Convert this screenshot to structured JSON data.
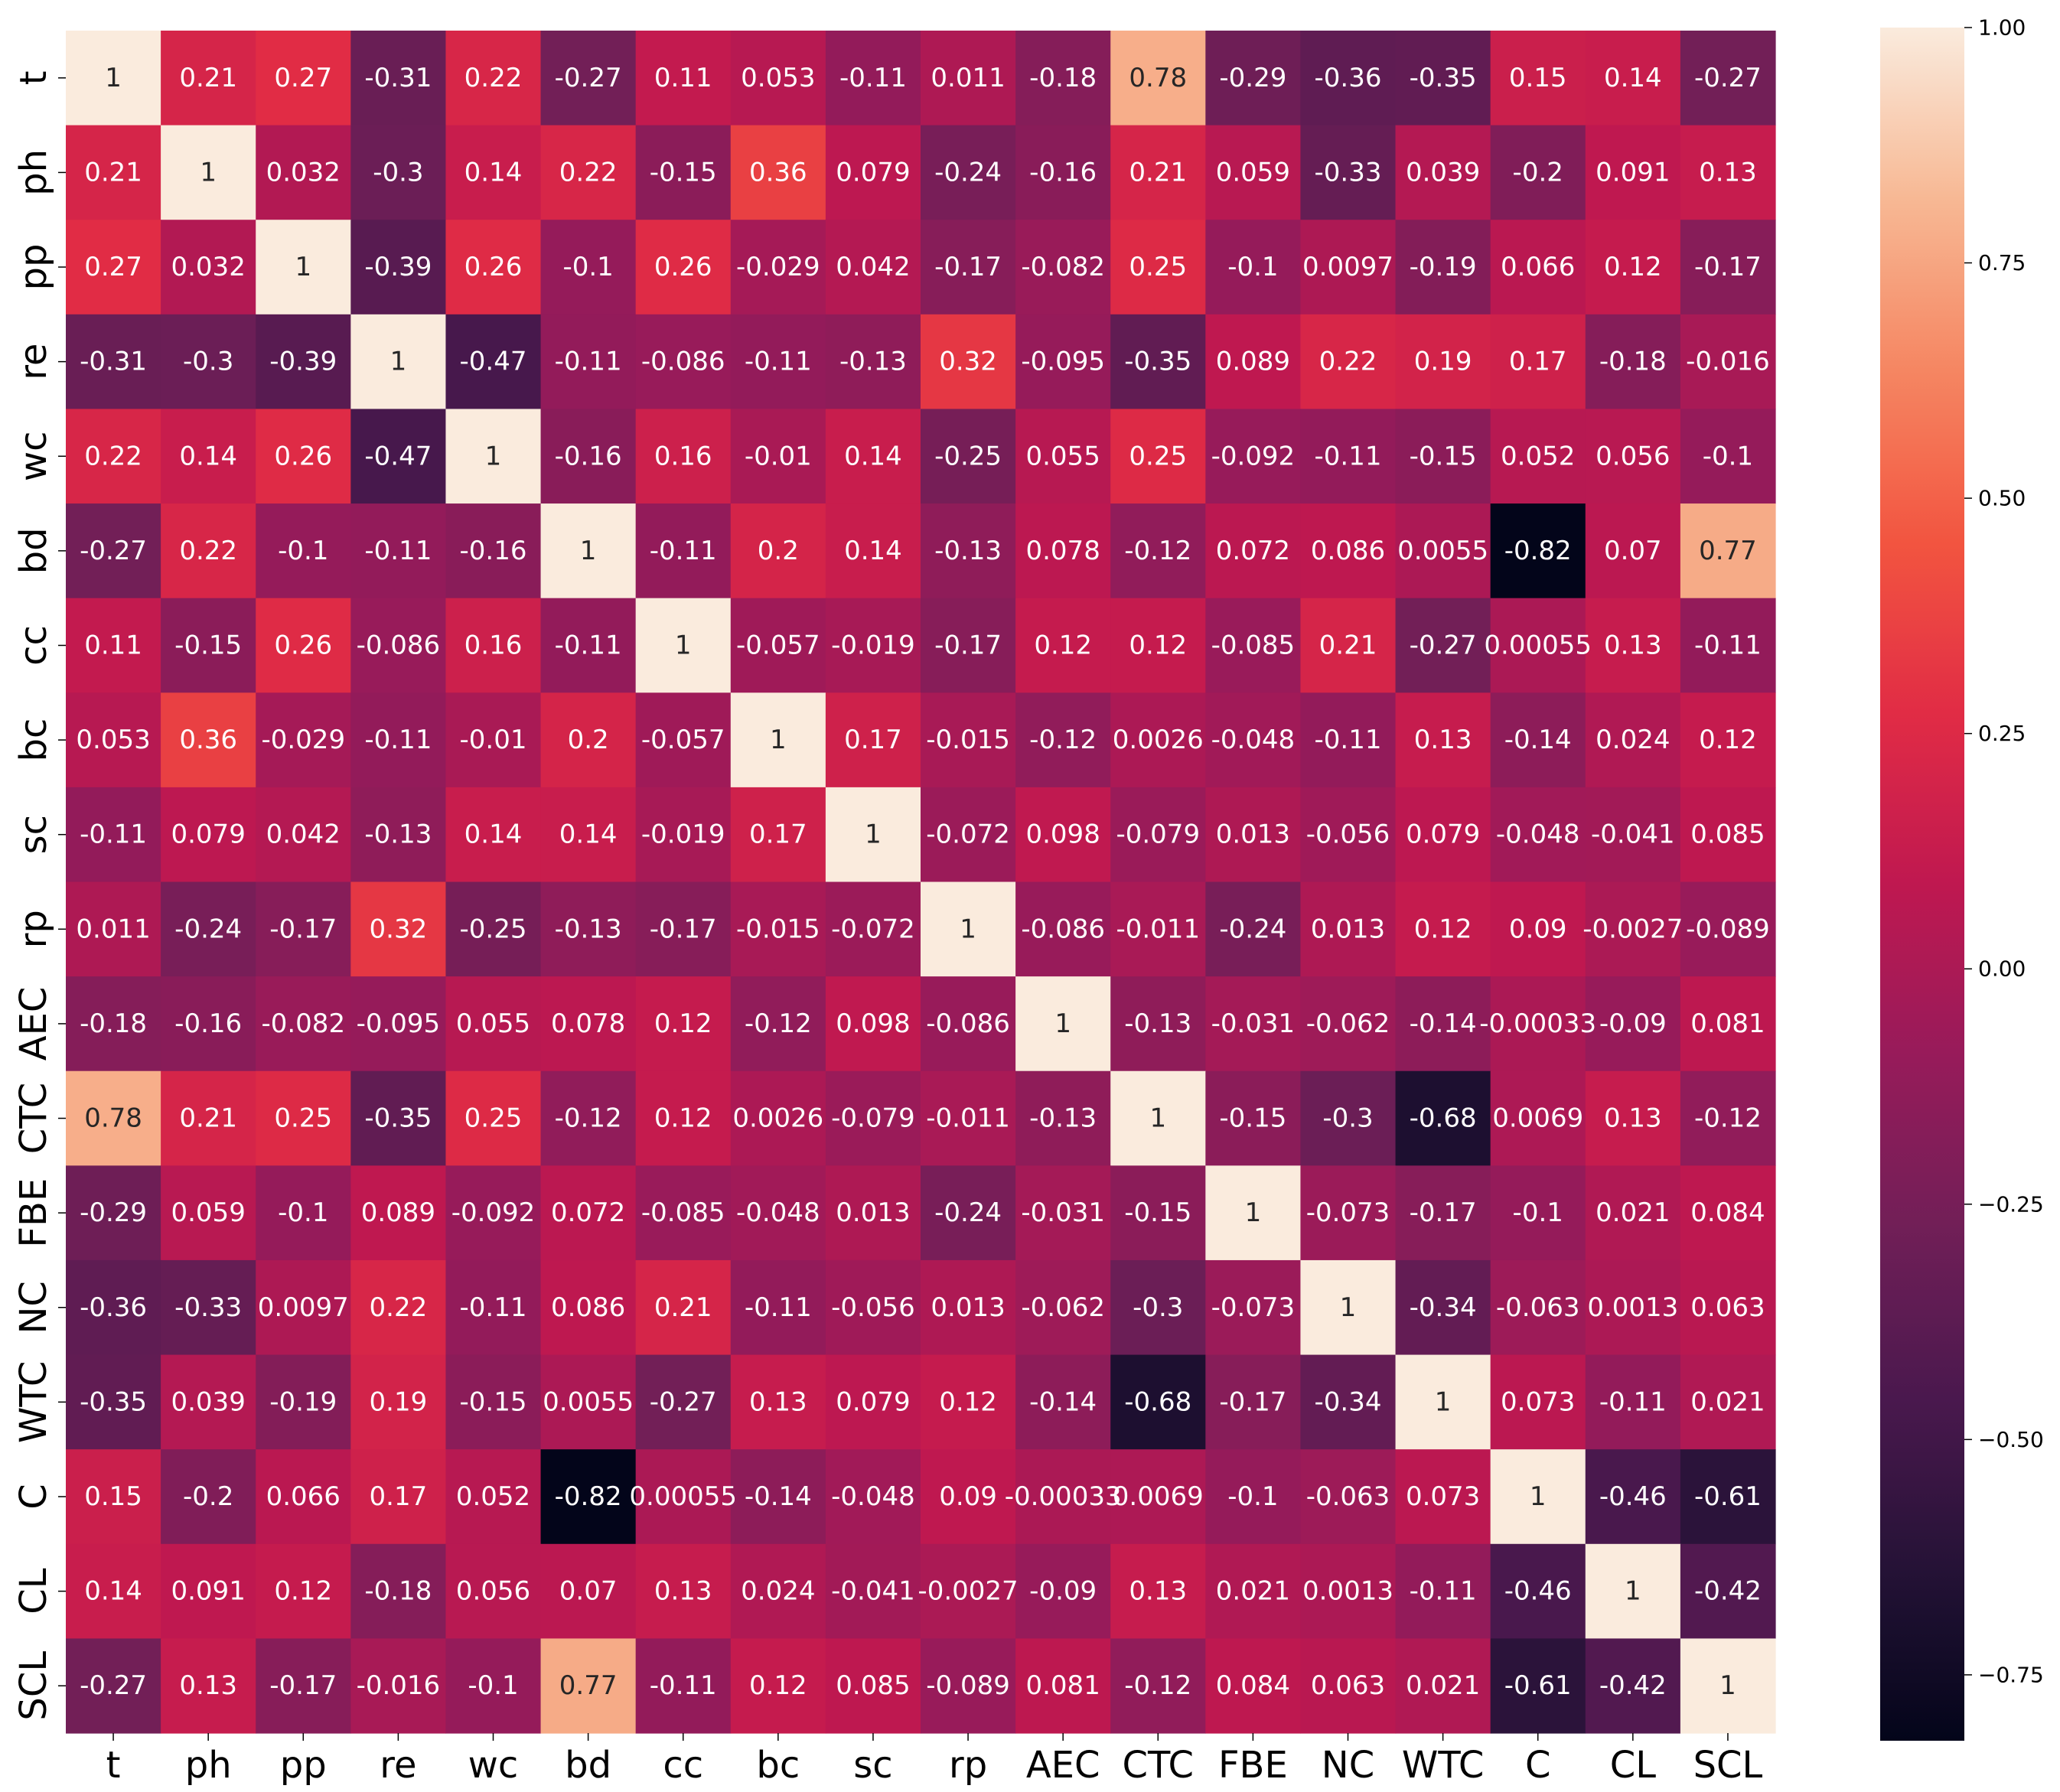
{
  "chart_data": {
    "type": "heatmap",
    "title": "",
    "xlabel": "",
    "ylabel": "",
    "colormap": "rocket",
    "x_labels": [
      "t",
      "ph",
      "pp",
      "re",
      "wc",
      "bd",
      "cc",
      "bc",
      "sc",
      "rp",
      "AEC",
      "CTC",
      "FBE",
      "NC",
      "WTC",
      "C",
      "CL",
      "SCL"
    ],
    "y_labels": [
      "t",
      "ph",
      "pp",
      "re",
      "wc",
      "bd",
      "cc",
      "bc",
      "sc",
      "rp",
      "AEC",
      "CTC",
      "FBE",
      "NC",
      "WTC",
      "C",
      "CL",
      "SCL"
    ],
    "values": [
      [
        1,
        0.21,
        0.27,
        -0.31,
        0.22,
        -0.27,
        0.11,
        0.053,
        -0.11,
        0.011,
        -0.18,
        0.78,
        -0.29,
        -0.36,
        -0.35,
        0.15,
        0.14,
        -0.27
      ],
      [
        0.21,
        1,
        0.032,
        -0.3,
        0.14,
        0.22,
        -0.15,
        0.36,
        0.079,
        -0.24,
        -0.16,
        0.21,
        0.059,
        -0.33,
        0.039,
        -0.2,
        0.091,
        0.13
      ],
      [
        0.27,
        0.032,
        1,
        -0.39,
        0.26,
        -0.1,
        0.26,
        -0.029,
        0.042,
        -0.17,
        -0.082,
        0.25,
        -0.1,
        0.0097,
        -0.19,
        0.066,
        0.12,
        -0.17
      ],
      [
        -0.31,
        -0.3,
        -0.39,
        1,
        -0.47,
        -0.11,
        -0.086,
        -0.11,
        -0.13,
        0.32,
        -0.095,
        -0.35,
        0.089,
        0.22,
        0.19,
        0.17,
        -0.18,
        -0.016
      ],
      [
        0.22,
        0.14,
        0.26,
        -0.47,
        1,
        -0.16,
        0.16,
        -0.01,
        0.14,
        -0.25,
        0.055,
        0.25,
        -0.092,
        -0.11,
        -0.15,
        0.052,
        0.056,
        -0.1
      ],
      [
        -0.27,
        0.22,
        -0.1,
        -0.11,
        -0.16,
        1,
        -0.11,
        0.2,
        0.14,
        -0.13,
        0.078,
        -0.12,
        0.072,
        0.086,
        0.0055,
        -0.82,
        0.07,
        0.77
      ],
      [
        0.11,
        -0.15,
        0.26,
        -0.086,
        0.16,
        -0.11,
        1,
        -0.057,
        -0.019,
        -0.17,
        0.12,
        0.12,
        -0.085,
        0.21,
        -0.27,
        0.00055,
        0.13,
        -0.11
      ],
      [
        0.053,
        0.36,
        -0.029,
        -0.11,
        -0.01,
        0.2,
        -0.057,
        1,
        0.17,
        -0.015,
        -0.12,
        0.0026,
        -0.048,
        -0.11,
        0.13,
        -0.14,
        0.024,
        0.12
      ],
      [
        -0.11,
        0.079,
        0.042,
        -0.13,
        0.14,
        0.14,
        -0.019,
        0.17,
        1,
        -0.072,
        0.098,
        -0.079,
        0.013,
        -0.056,
        0.079,
        -0.048,
        -0.041,
        0.085
      ],
      [
        0.011,
        -0.24,
        -0.17,
        0.32,
        -0.25,
        -0.13,
        -0.17,
        -0.015,
        -0.072,
        1,
        -0.086,
        -0.011,
        -0.24,
        0.013,
        0.12,
        0.09,
        -0.0027,
        -0.089
      ],
      [
        -0.18,
        -0.16,
        -0.082,
        -0.095,
        0.055,
        0.078,
        0.12,
        -0.12,
        0.098,
        -0.086,
        1,
        -0.13,
        -0.031,
        -0.062,
        -0.14,
        -0.00033,
        -0.09,
        0.081
      ],
      [
        0.78,
        0.21,
        0.25,
        -0.35,
        0.25,
        -0.12,
        0.12,
        0.0026,
        -0.079,
        -0.011,
        -0.13,
        1,
        -0.15,
        -0.3,
        -0.68,
        0.0069,
        0.13,
        -0.12
      ],
      [
        -0.29,
        0.059,
        -0.1,
        0.089,
        -0.092,
        0.072,
        -0.085,
        -0.048,
        0.013,
        -0.24,
        -0.031,
        -0.15,
        1,
        -0.073,
        -0.17,
        -0.1,
        0.021,
        0.084
      ],
      [
        -0.36,
        -0.33,
        0.0097,
        0.22,
        -0.11,
        0.086,
        0.21,
        -0.11,
        -0.056,
        0.013,
        -0.062,
        -0.3,
        -0.073,
        1,
        -0.34,
        -0.063,
        0.0013,
        0.063
      ],
      [
        -0.35,
        0.039,
        -0.19,
        0.19,
        -0.15,
        0.0055,
        -0.27,
        0.13,
        0.079,
        0.12,
        -0.14,
        -0.68,
        -0.17,
        -0.34,
        1,
        0.073,
        -0.11,
        0.021
      ],
      [
        0.15,
        -0.2,
        0.066,
        0.17,
        0.052,
        -0.82,
        0.00055,
        -0.14,
        -0.048,
        0.09,
        -0.00033,
        0.0069,
        -0.1,
        -0.063,
        0.073,
        1,
        -0.46,
        -0.61
      ],
      [
        0.14,
        0.091,
        0.12,
        -0.18,
        0.056,
        0.07,
        0.13,
        0.024,
        -0.041,
        -0.0027,
        -0.09,
        0.13,
        0.021,
        0.0013,
        -0.11,
        -0.46,
        1,
        -0.42
      ],
      [
        -0.27,
        0.13,
        -0.17,
        -0.016,
        -0.1,
        0.77,
        -0.11,
        0.12,
        0.085,
        -0.089,
        0.081,
        -0.12,
        0.084,
        0.063,
        0.021,
        -0.61,
        -0.42,
        1
      ]
    ],
    "colorbar": {
      "range": [
        -0.82,
        1.0
      ],
      "ticks": [
        1.0,
        0.75,
        0.5,
        0.25,
        0.0,
        -0.25,
        -0.5,
        -0.75
      ],
      "tick_labels": [
        "1.00",
        "0.75",
        "0.50",
        "0.25",
        "0.00",
        "−0.25",
        "−0.50",
        "−0.75"
      ]
    },
    "grid": false,
    "legend": "colorbar-right"
  }
}
